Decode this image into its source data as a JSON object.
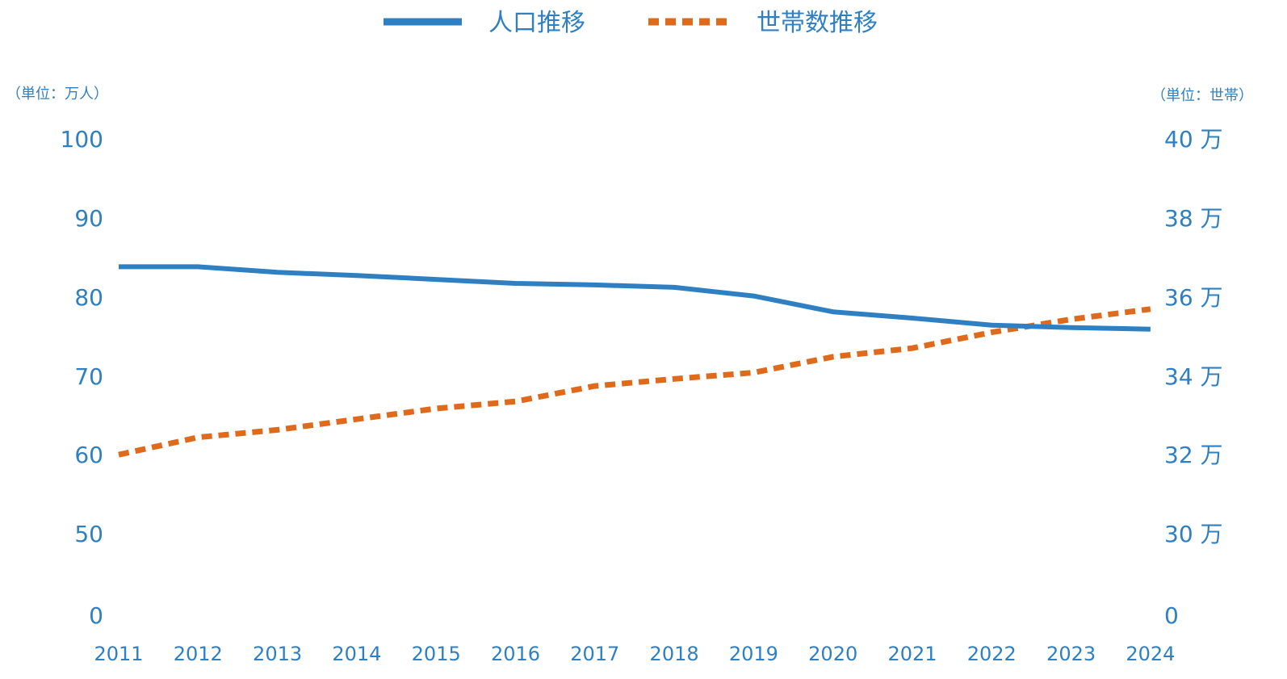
{
  "chart_data": {
    "type": "line",
    "categories": [
      "2011",
      "2012",
      "2013",
      "2014",
      "2015",
      "2016",
      "2017",
      "2018",
      "2019",
      "2020",
      "2021",
      "2022",
      "2023",
      "2024"
    ],
    "series": [
      {
        "name": "人口推移",
        "axis": "left",
        "color": "#2f80c2",
        "style": "solid",
        "values": [
          83.8,
          83.8,
          83.1,
          82.7,
          82.2,
          81.7,
          81.5,
          81.2,
          80.1,
          78.1,
          77.3,
          76.4,
          76.1,
          75.9
        ]
      },
      {
        "name": "世帯数推移",
        "axis": "right",
        "color": "#e06a1c",
        "style": "dashed",
        "values": [
          320000,
          324400,
          326300,
          329000,
          331700,
          333500,
          337400,
          339200,
          340800,
          344800,
          347000,
          351000,
          354300,
          356900
        ]
      }
    ],
    "y_left": {
      "unit_label": "（単位：万人）",
      "ticks": [
        "100",
        "90",
        "80",
        "70",
        "60",
        "50",
        "0"
      ]
    },
    "y_right": {
      "unit_label": "（単位：世帯）",
      "ticks": [
        "40 万",
        "38 万",
        "36 万",
        "34 万",
        "32 万",
        "30 万",
        "0"
      ]
    },
    "legend_position": "top-center",
    "grid": false
  }
}
